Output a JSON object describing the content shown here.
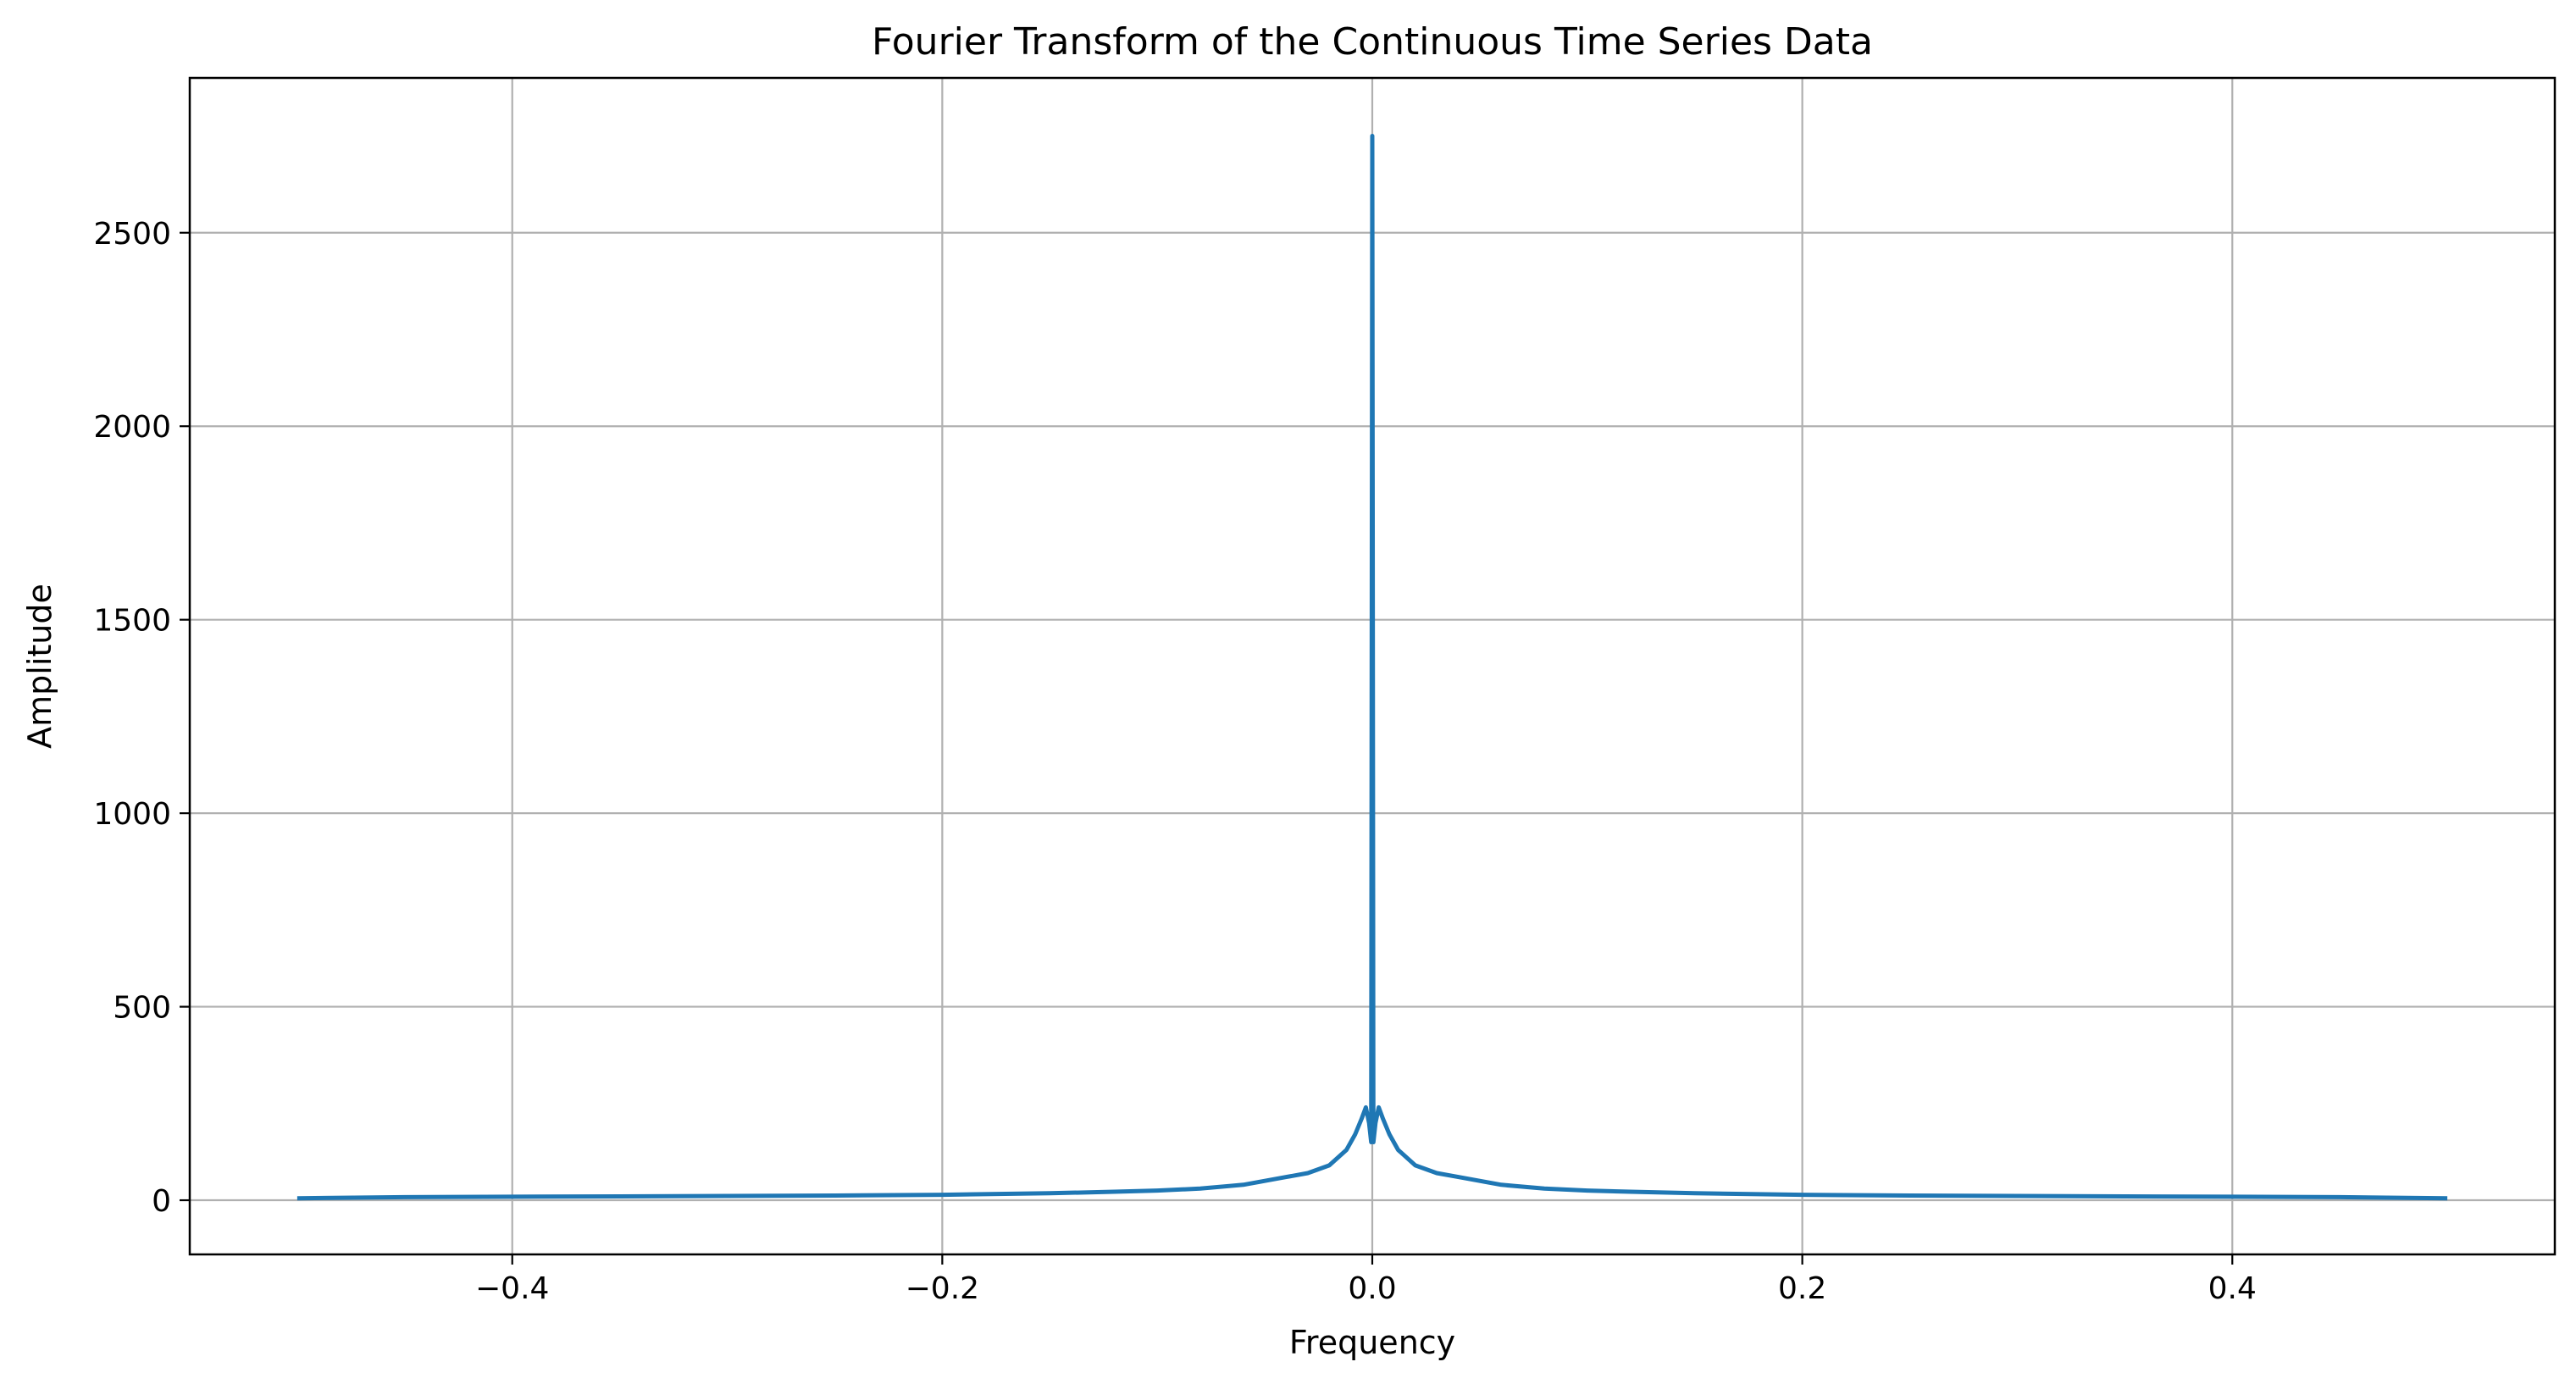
{
  "chart_data": {
    "type": "line",
    "title": "Fourier Transform of the Continuous Time Series Data",
    "xlabel": "Frequency",
    "ylabel": "Amplitude",
    "xlim": [
      -0.55,
      0.55
    ],
    "ylim": [
      -140,
      2900
    ],
    "grid": true,
    "x_ticks": [
      -0.4,
      -0.2,
      0.0,
      0.2,
      0.4
    ],
    "x_tick_labels": [
      "−0.4",
      "−0.2",
      "0.0",
      "0.2",
      "0.4"
    ],
    "y_ticks": [
      0,
      500,
      1000,
      1500,
      2000,
      2500
    ],
    "y_tick_labels": [
      "0",
      "500",
      "1000",
      "1500",
      "2000",
      "2500"
    ],
    "series": [
      {
        "color": "#1f77b4",
        "x": [
          -0.5,
          -0.45,
          -0.4,
          -0.35,
          -0.3,
          -0.25,
          -0.2,
          -0.15,
          -0.12,
          -0.1,
          -0.08,
          -0.06,
          -0.05,
          -0.04,
          -0.03,
          -0.02,
          -0.012,
          -0.008,
          -0.005,
          -0.003,
          -0.0015,
          -0.0005,
          0.0,
          0.0005,
          0.0015,
          0.003,
          0.005,
          0.008,
          0.012,
          0.02,
          0.03,
          0.04,
          0.05,
          0.06,
          0.08,
          0.1,
          0.12,
          0.15,
          0.2,
          0.25,
          0.3,
          0.35,
          0.4,
          0.45,
          0.5
        ],
        "y": [
          5,
          8,
          9,
          10,
          11,
          12,
          14,
          18,
          22,
          25,
          30,
          40,
          50,
          60,
          70,
          90,
          130,
          170,
          210,
          240,
          200,
          150,
          2750,
          150,
          200,
          240,
          210,
          170,
          130,
          90,
          70,
          60,
          50,
          40,
          30,
          25,
          22,
          18,
          14,
          12,
          11,
          10,
          9,
          8,
          5
        ]
      }
    ]
  }
}
